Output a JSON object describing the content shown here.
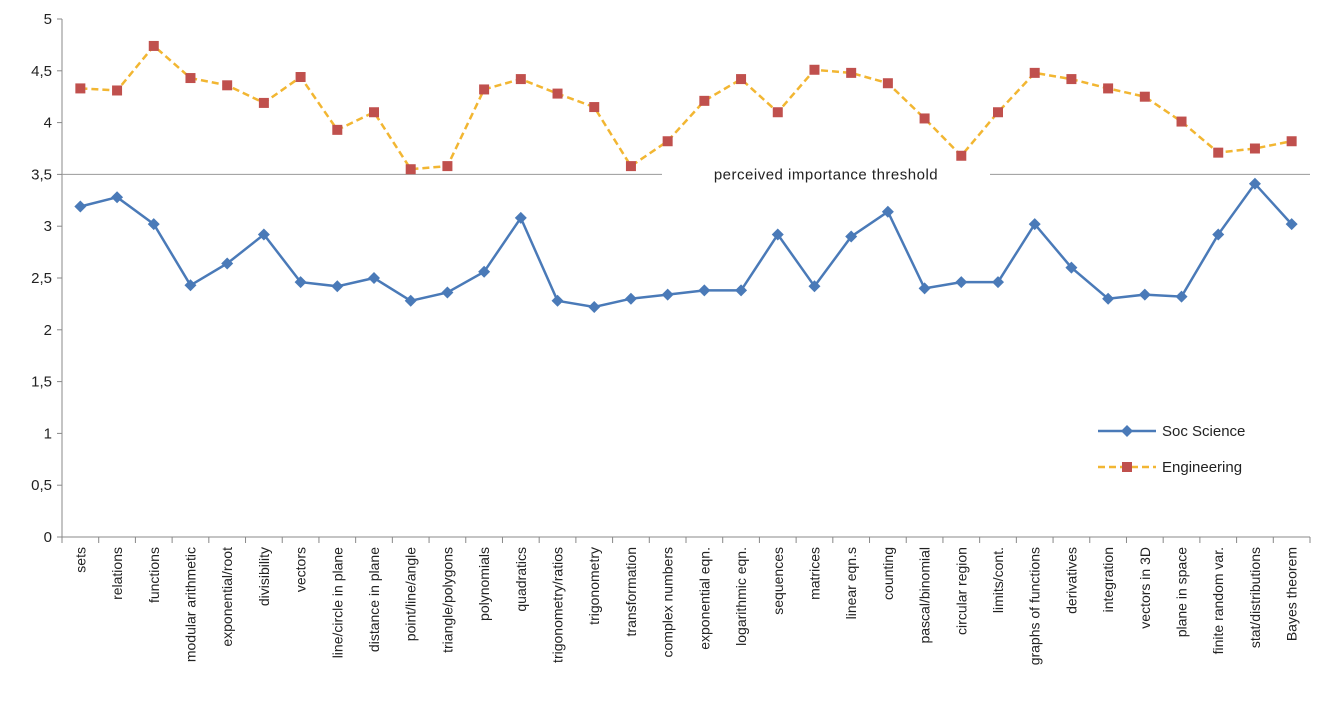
{
  "chart_data": {
    "type": "line",
    "title": "",
    "xlabel": "",
    "ylabel": "",
    "ylim": [
      0,
      5
    ],
    "y_ticks": [
      "0",
      "0,5",
      "1",
      "1,5",
      "2",
      "2,5",
      "3",
      "3,5",
      "4",
      "4,5",
      "5"
    ],
    "grid": false,
    "legend_position": "right",
    "categories": [
      "sets",
      "relations",
      "functions",
      "modular arithmetic",
      "exponential/root",
      "divisibility",
      "vectors",
      "line/circle in plane",
      "distance in plane",
      "point/line/angle",
      "triangle/polygons",
      "polynomials",
      "quadratics",
      "trigonometry/ratios",
      "trigonometry",
      "transformation",
      "complex numbers",
      "exponential eqn.",
      "logarithmic eqn.",
      "sequences",
      "matrices",
      "linear eqn.s",
      "counting",
      "pascal/binomial",
      "circular region",
      "limits/cont.",
      "graphs of functions",
      "derivatives",
      "integration",
      "vectors in 3D",
      "plane in space",
      "finite random var.",
      "stat/distributions",
      "Bayes theorem"
    ],
    "series": [
      {
        "name": "Soc Science",
        "color": "#4a7ab8",
        "marker": "diamond",
        "dash": "solid",
        "values": [
          3.19,
          3.28,
          3.02,
          2.43,
          2.64,
          2.92,
          2.46,
          2.42,
          2.5,
          2.28,
          2.36,
          2.56,
          3.08,
          2.28,
          2.22,
          2.3,
          2.34,
          2.38,
          2.38,
          2.92,
          2.42,
          2.9,
          3.14,
          2.4,
          2.46,
          2.46,
          3.02,
          2.6,
          2.3,
          2.34,
          2.32,
          2.92,
          3.41,
          3.02
        ]
      },
      {
        "name": "Engineering",
        "color": "#f2b632",
        "marker_color": "#c0504d",
        "marker": "square",
        "dash": "dashed",
        "values": [
          4.33,
          4.31,
          4.74,
          4.43,
          4.36,
          4.19,
          4.44,
          3.93,
          4.1,
          3.55,
          3.58,
          4.32,
          4.42,
          4.28,
          4.15,
          3.58,
          3.82,
          4.21,
          4.42,
          4.1,
          4.51,
          4.48,
          4.38,
          4.04,
          3.68,
          4.1,
          4.48,
          4.42,
          4.33,
          4.25,
          4.01,
          3.71,
          3.75,
          3.82
        ]
      }
    ],
    "annotations": [
      {
        "text": "perceived importance  threshold",
        "y": 3.5
      }
    ]
  }
}
